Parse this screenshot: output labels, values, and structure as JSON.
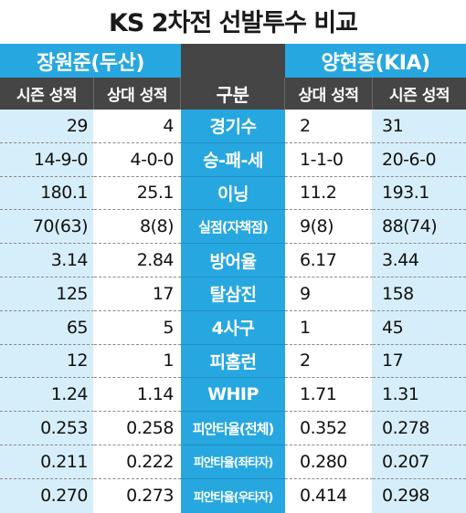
{
  "title": "KS 2차전 선발투수 비교",
  "left_team": "장원준(두산)",
  "right_team": "양현종(KIA)",
  "headers": {
    "left_season": "시즌 성적",
    "left_vs": "상대 성적",
    "category": "구분",
    "right_vs": "상대 성적",
    "right_season": "시즌 성적"
  },
  "rows": [
    {
      "category": "경기수",
      "left_season": "29",
      "left_vs": "4",
      "right_vs": "2",
      "right_season": "31"
    },
    {
      "category": "승-패-세",
      "left_season": "14-9-0",
      "left_vs": "4-0-0",
      "right_vs": "1-1-0",
      "right_season": "20-6-0"
    },
    {
      "category": "이닝",
      "left_season": "180.1",
      "left_vs": "25.1",
      "right_vs": "11.2",
      "right_season": "193.1"
    },
    {
      "category": "실점(자책점)",
      "left_season": "70(63)",
      "left_vs": "8(8)",
      "right_vs": "9(8)",
      "right_season": "88(74)"
    },
    {
      "category": "방어율",
      "left_season": "3.14",
      "left_vs": "2.84",
      "right_vs": "6.17",
      "right_season": "3.44"
    },
    {
      "category": "탈삼진",
      "left_season": "125",
      "left_vs": "17",
      "right_vs": "9",
      "right_season": "158"
    },
    {
      "category": "4사구",
      "left_season": "65",
      "left_vs": "5",
      "right_vs": "1",
      "right_season": "45"
    },
    {
      "category": "피홈런",
      "left_season": "12",
      "left_vs": "1",
      "right_vs": "2",
      "right_season": "17"
    },
    {
      "category": "WHIP",
      "left_season": "1.24",
      "left_vs": "1.14",
      "right_vs": "1.71",
      "right_season": "1.31"
    },
    {
      "category": "피안타율(전체)",
      "left_season": "0.253",
      "left_vs": "0.258",
      "right_vs": "0.352",
      "right_season": "0.278"
    },
    {
      "category": "피안타율(좌타자)",
      "left_season": "0.211",
      "left_vs": "0.222",
      "right_vs": "0.280",
      "right_season": "0.207"
    },
    {
      "category": "피안타율(우타자)",
      "left_season": "0.270",
      "left_vs": "0.273",
      "right_vs": "0.414",
      "right_season": "0.298"
    }
  ],
  "colors": {
    "accent_blue": "#27a7e0",
    "header_dark": "#454545",
    "light_blue": "#d6eef9"
  }
}
